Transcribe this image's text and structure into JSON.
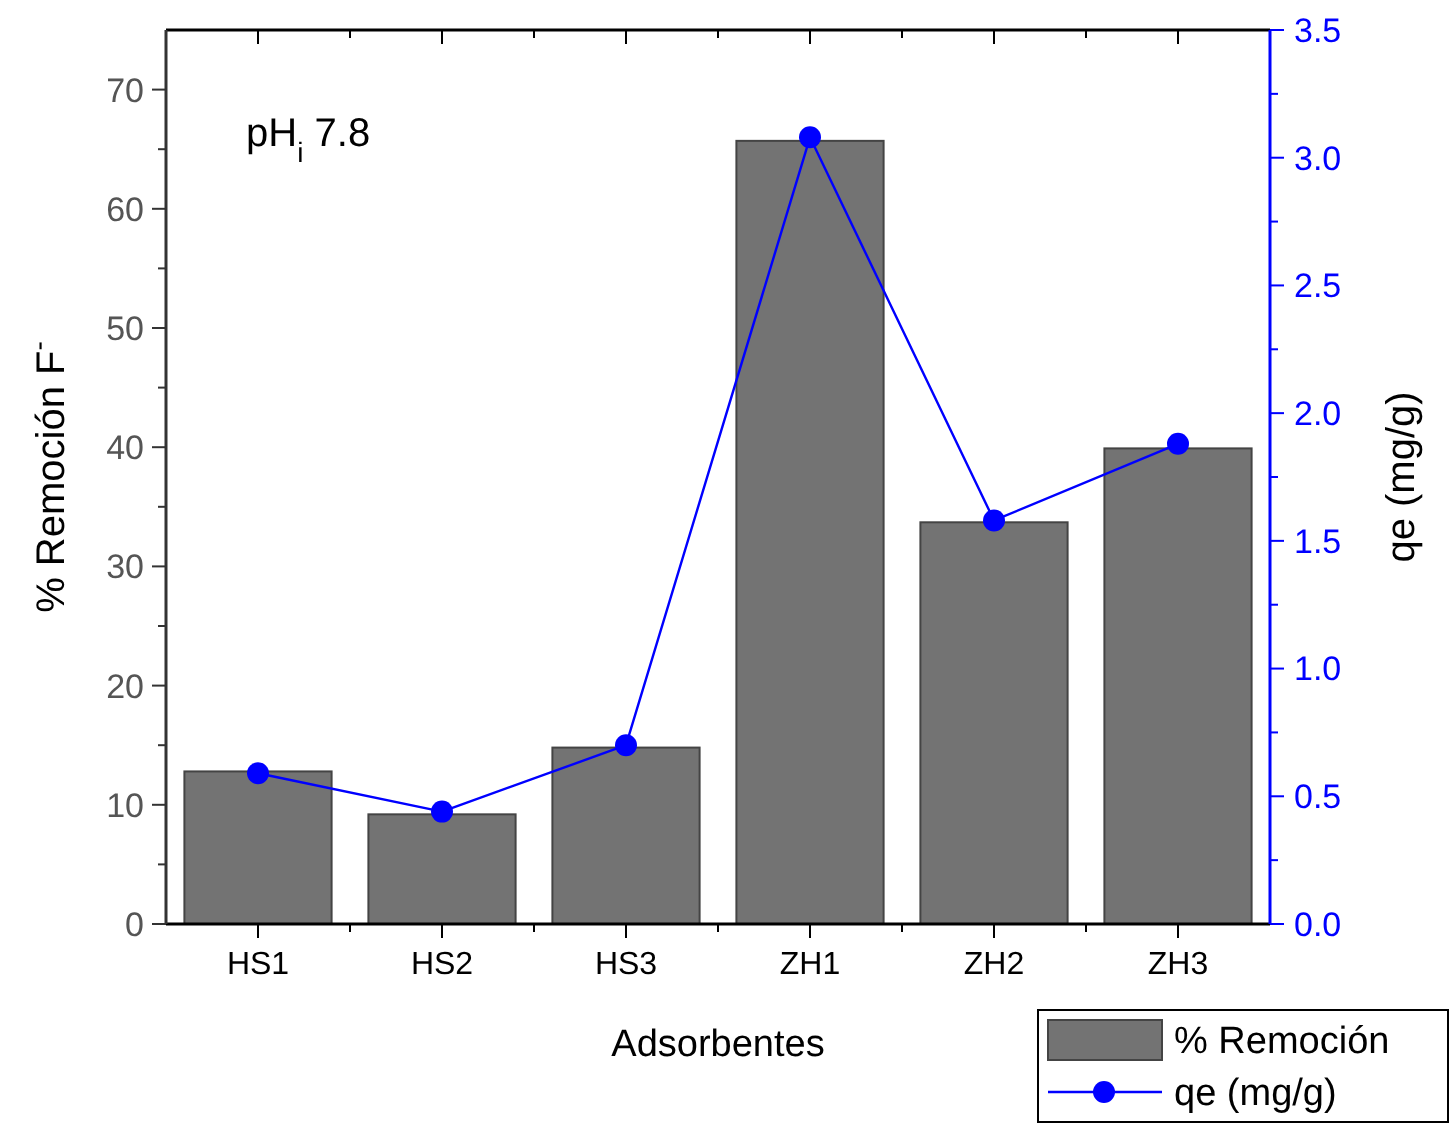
{
  "chart_data": {
    "type": "bar",
    "ylabel": "% Remoción F$^{-}$",
    "xlabel": "Adsorbentes",
    "y2label": "qe (mg/g)",
    "annotations": [
      "pH$_{i}$ 7.8"
    ],
    "categories": [
      "HS1",
      "HS2",
      "HS3",
      "ZH1",
      "ZH2",
      "ZH3"
    ],
    "series": [
      {
        "name": "% Remoción",
        "color": "#737373",
        "values": [
          12.8,
          9.2,
          14.8,
          65.7,
          33.7,
          39.9
        ]
      },
      {
        "name": "qe (mg/g)",
        "type": "line",
        "axis": "y2",
        "color": "#0000ff",
        "marker": "circle",
        "values": [
          0.59,
          0.44,
          0.7,
          3.08,
          1.58,
          1.88
        ]
      }
    ],
    "ylim": [
      0,
      75
    ],
    "yticks": [
      0,
      10,
      20,
      30,
      40,
      50,
      60,
      70
    ],
    "y2lim": [
      0,
      3.5
    ],
    "y2ticks": [
      {
        "value": 0,
        "label": "0.0"
      },
      {
        "value": 0.5,
        "label": "0.5"
      },
      {
        "value": 1,
        "label": "1.0"
      },
      {
        "value": 1.5,
        "label": "1.5"
      },
      {
        "value": 2,
        "label": "2.0"
      },
      {
        "value": 2.5,
        "label": "2.5"
      },
      {
        "value": 3,
        "label": "3.0"
      },
      {
        "value": 3.5,
        "label": "3.5"
      }
    ],
    "legend": "bottom right"
  }
}
